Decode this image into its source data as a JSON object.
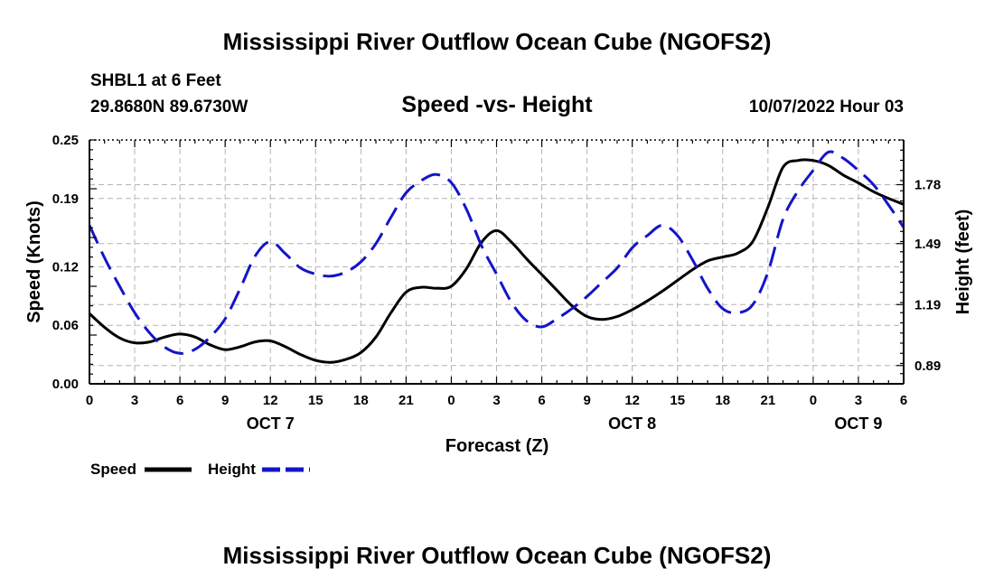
{
  "header": {
    "title": "Mississippi River Outflow Ocean Cube (NGOFS2)",
    "station": "SHBL1 at 6 Feet",
    "coords": "29.8680N  89.6730W",
    "plot_title": "Speed -vs- Height",
    "datetime": "10/07/2022 Hour 03"
  },
  "footer": {
    "title": "Mississippi River Outflow Ocean Cube (NGOFS2)"
  },
  "legend": {
    "speed_label": "Speed",
    "height_label": "Height"
  },
  "colors": {
    "speed": "#000000",
    "height": "#1414c8",
    "grid": "#b4b4b4"
  },
  "chart_data": {
    "type": "line",
    "title": "Speed -vs- Height",
    "xlabel": "Forecast (Z)",
    "ylabel": "Speed (Knots)",
    "y2label": "Height (feet)",
    "xlim": [
      0,
      54
    ],
    "ylim": [
      0,
      0.25
    ],
    "y2lim": [
      0.8,
      2.0
    ],
    "x_ticks": [
      0,
      3,
      6,
      9,
      12,
      15,
      18,
      21,
      24,
      27,
      30,
      33,
      36,
      39,
      42,
      45,
      48,
      51,
      54
    ],
    "x_tick_labels": [
      "0",
      "3",
      "6",
      "9",
      "12",
      "15",
      "18",
      "21",
      "0",
      "3",
      "6",
      "9",
      "12",
      "15",
      "18",
      "21",
      "0",
      "3",
      "6"
    ],
    "day_labels": [
      {
        "x": 12,
        "label": "OCT 7"
      },
      {
        "x": 36,
        "label": "OCT 8"
      },
      {
        "x": 51,
        "label": "OCT 9"
      }
    ],
    "y_ticks": [
      0.0,
      0.06,
      0.12,
      0.19,
      0.25
    ],
    "y_tick_labels": [
      "0.00",
      "0.06",
      "0.12",
      "0.19",
      "0.25"
    ],
    "y2_ticks": [
      0.89,
      1.19,
      1.49,
      1.78
    ],
    "y2_tick_labels": [
      "0.89",
      "1.19",
      "1.49",
      "1.78"
    ],
    "series": [
      {
        "name": "Speed",
        "axis": "left",
        "x": [
          0,
          1,
          2,
          3,
          4,
          5,
          6,
          7,
          8,
          9,
          10,
          11,
          12,
          13,
          14,
          15,
          16,
          17,
          18,
          19,
          20,
          21,
          22,
          23,
          24,
          25,
          26,
          27,
          28,
          29,
          30,
          31,
          32,
          33,
          34,
          35,
          36,
          37,
          38,
          39,
          40,
          41,
          42,
          43,
          44,
          45,
          46,
          47,
          48,
          49,
          50,
          51,
          52,
          53,
          54
        ],
        "values": [
          0.072,
          0.058,
          0.047,
          0.042,
          0.043,
          0.048,
          0.051,
          0.048,
          0.04,
          0.035,
          0.038,
          0.043,
          0.044,
          0.038,
          0.03,
          0.024,
          0.022,
          0.025,
          0.032,
          0.048,
          0.073,
          0.094,
          0.099,
          0.098,
          0.1,
          0.118,
          0.145,
          0.157,
          0.145,
          0.128,
          0.112,
          0.096,
          0.08,
          0.069,
          0.066,
          0.069,
          0.076,
          0.085,
          0.095,
          0.106,
          0.117,
          0.126,
          0.13,
          0.134,
          0.146,
          0.181,
          0.222,
          0.229,
          0.229,
          0.224,
          0.214,
          0.206,
          0.197,
          0.19,
          0.184
        ]
      },
      {
        "name": "Height",
        "axis": "right",
        "x": [
          0,
          1,
          2,
          3,
          4,
          5,
          6,
          7,
          8,
          9,
          10,
          11,
          12,
          13,
          14,
          15,
          16,
          17,
          18,
          19,
          20,
          21,
          22,
          23,
          24,
          25,
          26,
          27,
          28,
          29,
          30,
          31,
          32,
          33,
          34,
          35,
          36,
          37,
          38,
          39,
          40,
          41,
          42,
          43,
          44,
          45,
          46,
          47,
          48,
          49,
          50,
          51,
          52,
          53,
          54
        ],
        "values": [
          1.58,
          1.42,
          1.28,
          1.15,
          1.05,
          0.98,
          0.95,
          0.97,
          1.03,
          1.12,
          1.27,
          1.43,
          1.5,
          1.44,
          1.37,
          1.34,
          1.33,
          1.35,
          1.4,
          1.49,
          1.62,
          1.74,
          1.8,
          1.83,
          1.79,
          1.66,
          1.48,
          1.34,
          1.2,
          1.11,
          1.08,
          1.12,
          1.17,
          1.23,
          1.3,
          1.37,
          1.47,
          1.53,
          1.58,
          1.53,
          1.41,
          1.27,
          1.17,
          1.15,
          1.19,
          1.35,
          1.61,
          1.75,
          1.85,
          1.94,
          1.91,
          1.85,
          1.78,
          1.68,
          1.57
        ]
      }
    ]
  }
}
